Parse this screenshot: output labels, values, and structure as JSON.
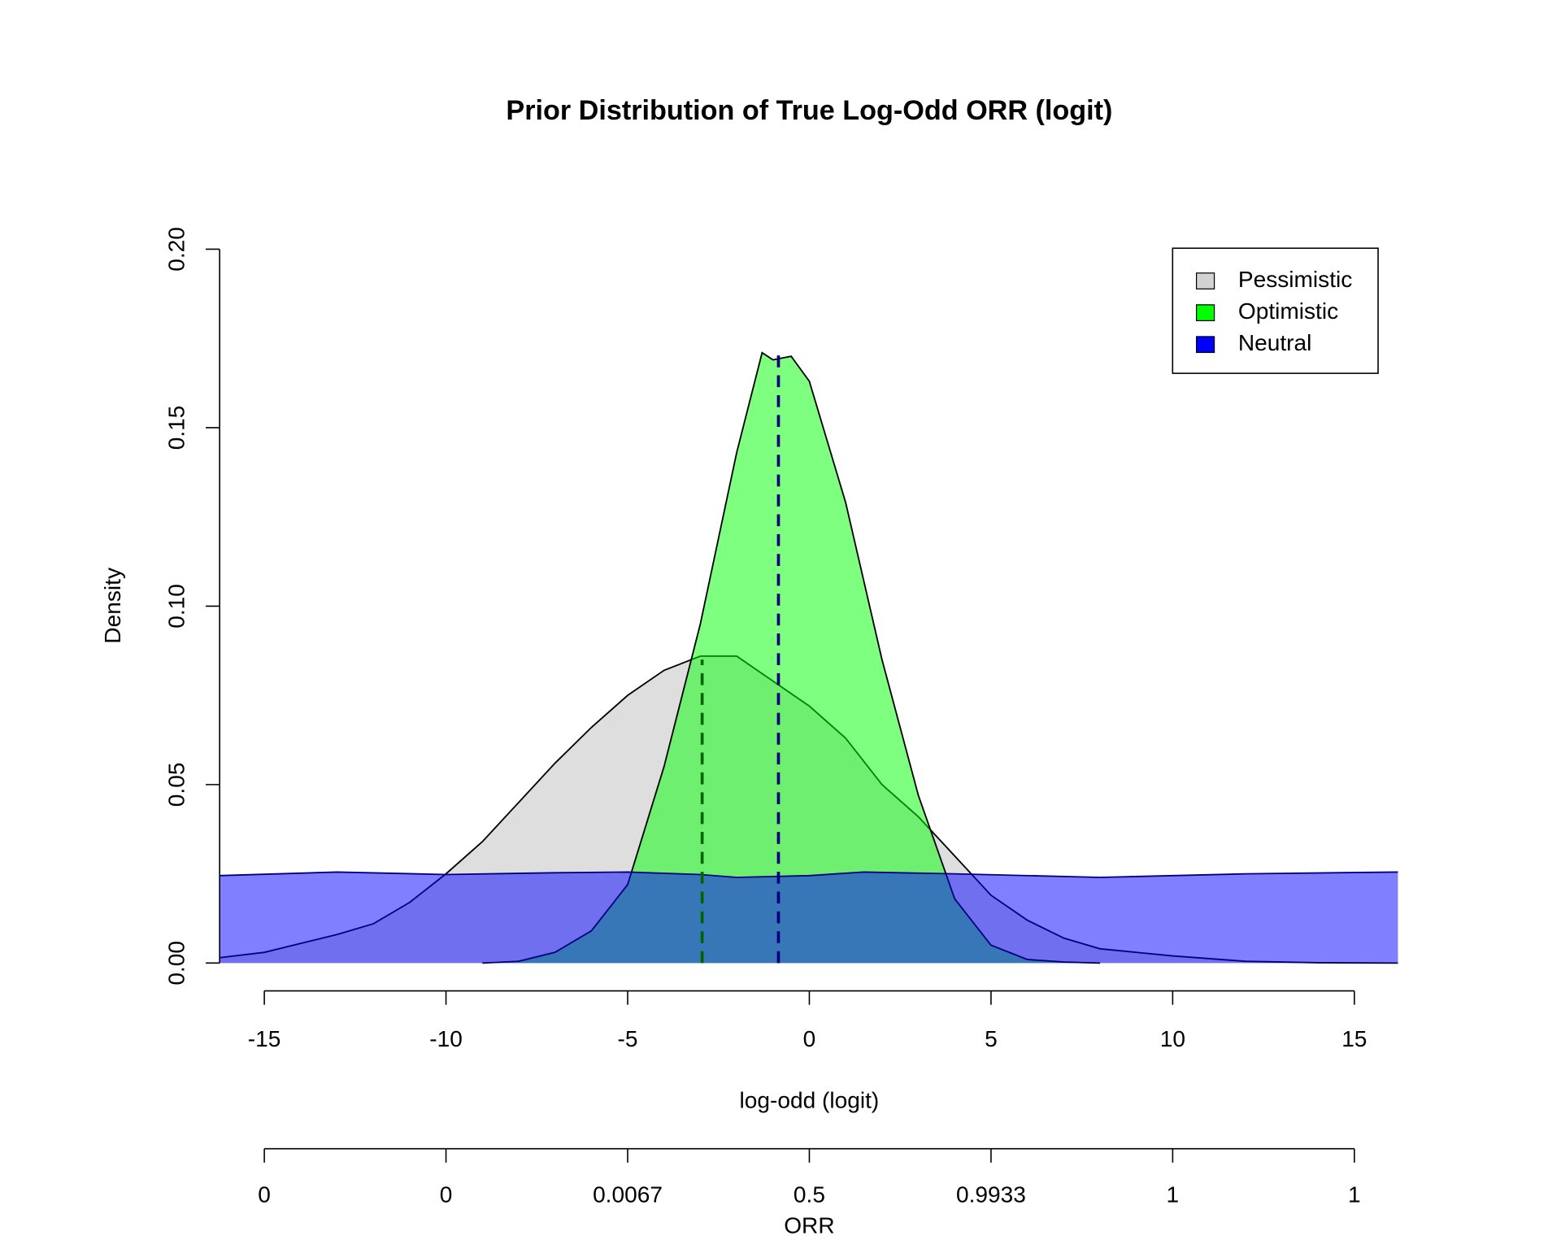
{
  "chart_data": {
    "type": "area",
    "title": "Prior Distribution of True Log-Odd ORR (logit)",
    "x_label": "log-odd (logit)",
    "y_label": "Density",
    "x2_label": "ORR",
    "xlim": [
      -16.23,
      16.2
    ],
    "ylim": [
      0,
      0.2
    ],
    "xticks": [
      -15,
      -10,
      -5,
      0,
      5,
      10,
      15
    ],
    "yticks": [
      {
        "value": 0,
        "label": "0.00"
      },
      0.05,
      {
        "value": 0.1,
        "label": "0.10"
      },
      0.15,
      {
        "value": 0.2,
        "label": "0.20"
      }
    ],
    "x2ticks": [
      {
        "value": -15,
        "label": "0"
      },
      {
        "value": -10,
        "label": "0"
      },
      {
        "value": -5,
        "label": "0.0067"
      },
      {
        "value": 0,
        "label": "0.5"
      },
      {
        "value": 5,
        "label": "0.9933"
      },
      {
        "value": 10,
        "label": "1"
      },
      {
        "value": 15,
        "label": "1"
      }
    ],
    "legend_position": "top-right",
    "series": [
      {
        "name": "Pessimistic",
        "color": "#d3d3d3",
        "fill": "rgba(200,200,200,0.6)",
        "x": [
          -16.23,
          -15,
          -13,
          -12,
          -11,
          -10,
          -9,
          -8,
          -7,
          -6,
          -5,
          -4,
          -3,
          -2,
          -1,
          0,
          1,
          2,
          3,
          4,
          5,
          6,
          7,
          8,
          10,
          12,
          14,
          16.2
        ],
        "values": [
          0.0015,
          0.003,
          0.008,
          0.011,
          0.017,
          0.025,
          0.034,
          0.045,
          0.056,
          0.066,
          0.075,
          0.082,
          0.086,
          0.086,
          0.079,
          0.072,
          0.063,
          0.05,
          0.041,
          0.03,
          0.019,
          0.012,
          0.007,
          0.004,
          0.002,
          0.0005,
          0.0001,
          0
        ]
      },
      {
        "name": "Optimistic",
        "color": "#00ff00",
        "fill": "rgba(0,255,0,0.5)",
        "x": [
          -9,
          -8,
          -7,
          -6,
          -5,
          -4,
          -3,
          -2,
          -1.3,
          -1,
          -0.5,
          0,
          1,
          2,
          3,
          4,
          5,
          6,
          7,
          8
        ],
        "values": [
          0,
          0.0005,
          0.003,
          0.009,
          0.022,
          0.055,
          0.095,
          0.143,
          0.171,
          0.169,
          0.17,
          0.163,
          0.129,
          0.085,
          0.047,
          0.018,
          0.005,
          0.001,
          0.0003,
          0
        ]
      },
      {
        "name": "Neutral",
        "color": "#0000ff",
        "fill": "rgba(0,0,255,0.5)",
        "x": [
          -16.23,
          -13,
          -10,
          -7,
          -5,
          -3,
          -2,
          0,
          1.5,
          4,
          8,
          12,
          16.2
        ],
        "values": [
          0.0245,
          0.0255,
          0.0248,
          0.0253,
          0.0255,
          0.0248,
          0.024,
          0.0245,
          0.0255,
          0.025,
          0.024,
          0.025,
          0.0255
        ]
      }
    ],
    "reference_lines": [
      {
        "x": -2.95,
        "top": 0.085,
        "color": "#006400"
      },
      {
        "x": -0.85,
        "top": 0.171,
        "color": "#000080"
      }
    ]
  }
}
